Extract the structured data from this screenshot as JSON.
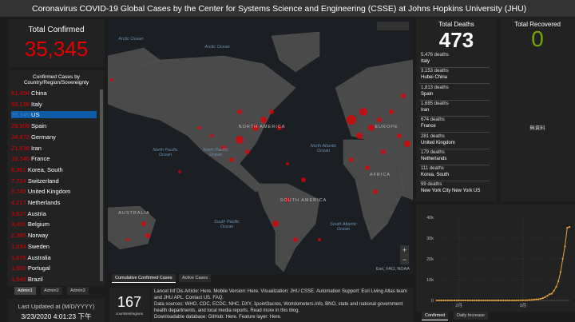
{
  "header": {
    "title": "Coronavirus COVID-19 Global Cases by the Center for Systems Science and Engineering (CSSE) at Johns Hopkins University (JHU)"
  },
  "confirmed": {
    "title": "Total Confirmed",
    "value": "35,345"
  },
  "country_list": {
    "title": "Confirmed Cases by Country/Region/Sovereignty",
    "rows": [
      [
        "81,454",
        "China"
      ],
      [
        "59,138",
        "Italy"
      ],
      [
        "35,345",
        "US"
      ],
      [
        "29,909",
        "Spain"
      ],
      [
        "24,873",
        "Germany"
      ],
      [
        "21,638",
        "Iran"
      ],
      [
        "16,246",
        "France"
      ],
      [
        "8,961",
        "Korea, South"
      ],
      [
        "7,724",
        "Switzerland"
      ],
      [
        "5,745",
        "United Kingdom"
      ],
      [
        "4,217",
        "Netherlands"
      ],
      [
        "3,627",
        "Austria"
      ],
      [
        "3,401",
        "Belgium"
      ],
      [
        "2,385",
        "Norway"
      ],
      [
        "1,934",
        "Sweden"
      ],
      [
        "1,676",
        "Australia"
      ],
      [
        "1,600",
        "Portugal"
      ],
      [
        "1,546",
        "Brazil"
      ]
    ],
    "tabs": [
      "Admin1",
      "Admin2",
      "Admin3"
    ]
  },
  "updated": {
    "title": "Last Updated at (M/D/YYYY)",
    "value": "3/23/2020 4:01:23 下午"
  },
  "map": {
    "labels": [
      "Arctic Ocean",
      "Arctic Ocean",
      "NORTH AMERICA",
      "North Pacific Ocean",
      "North Pacific Ocean",
      "North Atlantic Ocean",
      "EUROPE",
      "AFRICA",
      "SOUTH AMERICA",
      "South Pacific Ocean",
      "South Atlantic Ocean",
      "AUSTRALIA"
    ],
    "attribution": "Esri, FAO, NOAA",
    "tabs": [
      "Cumulative Confirmed Cases",
      "Active Cases"
    ]
  },
  "countries": {
    "value": "167",
    "label": "countries/regions"
  },
  "info": {
    "paragraphs": [
      "Lancet Inf Dis Article: Here. Mobile Version: Here. Visualization: JHU CSSE. Automation Support: Esri Living Atlas team and JHU APL. Contact US. FAQ.",
      "Data sources: WHO, CDC, ECDC, NHC, DXY, 1point3acres, Worldometers.info, BNO, state and national government health departments, and local media reports.  Read more in this blog.",
      "Downloadable database: GitHub: Here. Feature layer: Here."
    ]
  },
  "deaths": {
    "title": "Total Deaths",
    "value": "473",
    "rows": [
      [
        "5,476 deaths",
        "Italy"
      ],
      [
        "3,153 deaths",
        "Hubei China"
      ],
      [
        "1,813 deaths",
        "Spain"
      ],
      [
        "1,685 deaths",
        "Iran"
      ],
      [
        "674 deaths",
        "France"
      ],
      [
        "281 deaths",
        "United Kingdom"
      ],
      [
        "179 deaths",
        "Netherlands"
      ],
      [
        "111 deaths",
        "Korea, South"
      ],
      [
        "99 deaths",
        "New York City New York US"
      ]
    ]
  },
  "recovered": {
    "title": "Total Recovered",
    "value": "0",
    "note": "無資料"
  },
  "chart": {
    "type": "line",
    "color": "#e8a33d",
    "values": [
      1,
      1,
      2,
      2,
      5,
      5,
      5,
      5,
      5,
      7,
      8,
      8,
      11,
      11,
      11,
      11,
      12,
      12,
      12,
      12,
      12,
      13,
      13,
      14,
      14,
      14,
      14,
      14,
      14,
      14,
      16,
      16,
      16,
      16,
      16,
      16,
      17,
      25,
      32,
      55,
      74,
      107,
      184,
      237,
      403,
      519,
      594,
      782,
      1147,
      1586,
      2219,
      2978,
      3212,
      4679,
      6512,
      9169,
      13663,
      20030,
      26025,
      34944,
      35345
    ],
    "xlim": [
      0,
      60
    ],
    "xticks": [
      {
        "value": 10,
        "label": "2月"
      },
      {
        "value": 39,
        "label": "3月"
      }
    ],
    "ylim": [
      0,
      40000
    ],
    "yticks": [
      0,
      {
        "value": 10000,
        "label": "10k"
      },
      {
        "value": 20000,
        "label": "20k"
      },
      {
        "value": 30000,
        "label": "30k"
      },
      {
        "value": 40000,
        "label": "40k"
      }
    ],
    "tabs": [
      "Confirmed",
      "Daily Increase"
    ]
  }
}
